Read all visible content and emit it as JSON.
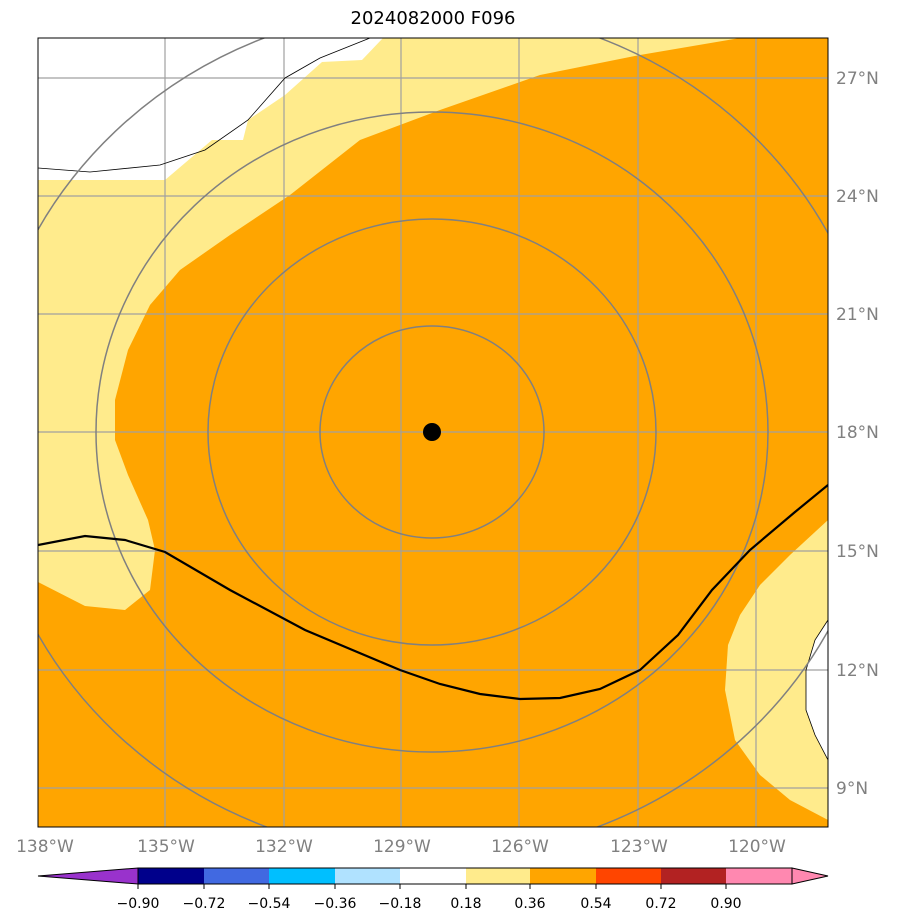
{
  "title": "2024082000 F096",
  "map": {
    "longitude_labels": [
      "138°W",
      "135°W",
      "132°W",
      "129°W",
      "126°W",
      "123°W",
      "120°W"
    ],
    "latitude_labels": [
      "27°N",
      "24°N",
      "21°N",
      "18°N",
      "15°N",
      "12°N",
      "9°N"
    ],
    "center_marker": {
      "lon": -128.2,
      "lat": 18.0
    },
    "range_rings": 4,
    "fill_colors": {
      "white": "#ffffff",
      "light": "#ffeb8c",
      "orange": "#ffa500"
    },
    "grid_color": "#a0a0a0",
    "ring_color": "#808080",
    "contour_color": "#000000"
  },
  "colorbar": {
    "ticks": [
      "−0.90",
      "−0.72",
      "−0.54",
      "−0.36",
      "−0.18",
      "0.18",
      "0.36",
      "0.54",
      "0.72",
      "0.90"
    ],
    "colors": [
      "#9932cc",
      "#00008b",
      "#4169e1",
      "#00bfff",
      "#b0e2ff",
      "#ffffff",
      "#ffeb8c",
      "#ffa500",
      "#ff4500",
      "#b22222",
      "#ff88b0"
    ]
  }
}
